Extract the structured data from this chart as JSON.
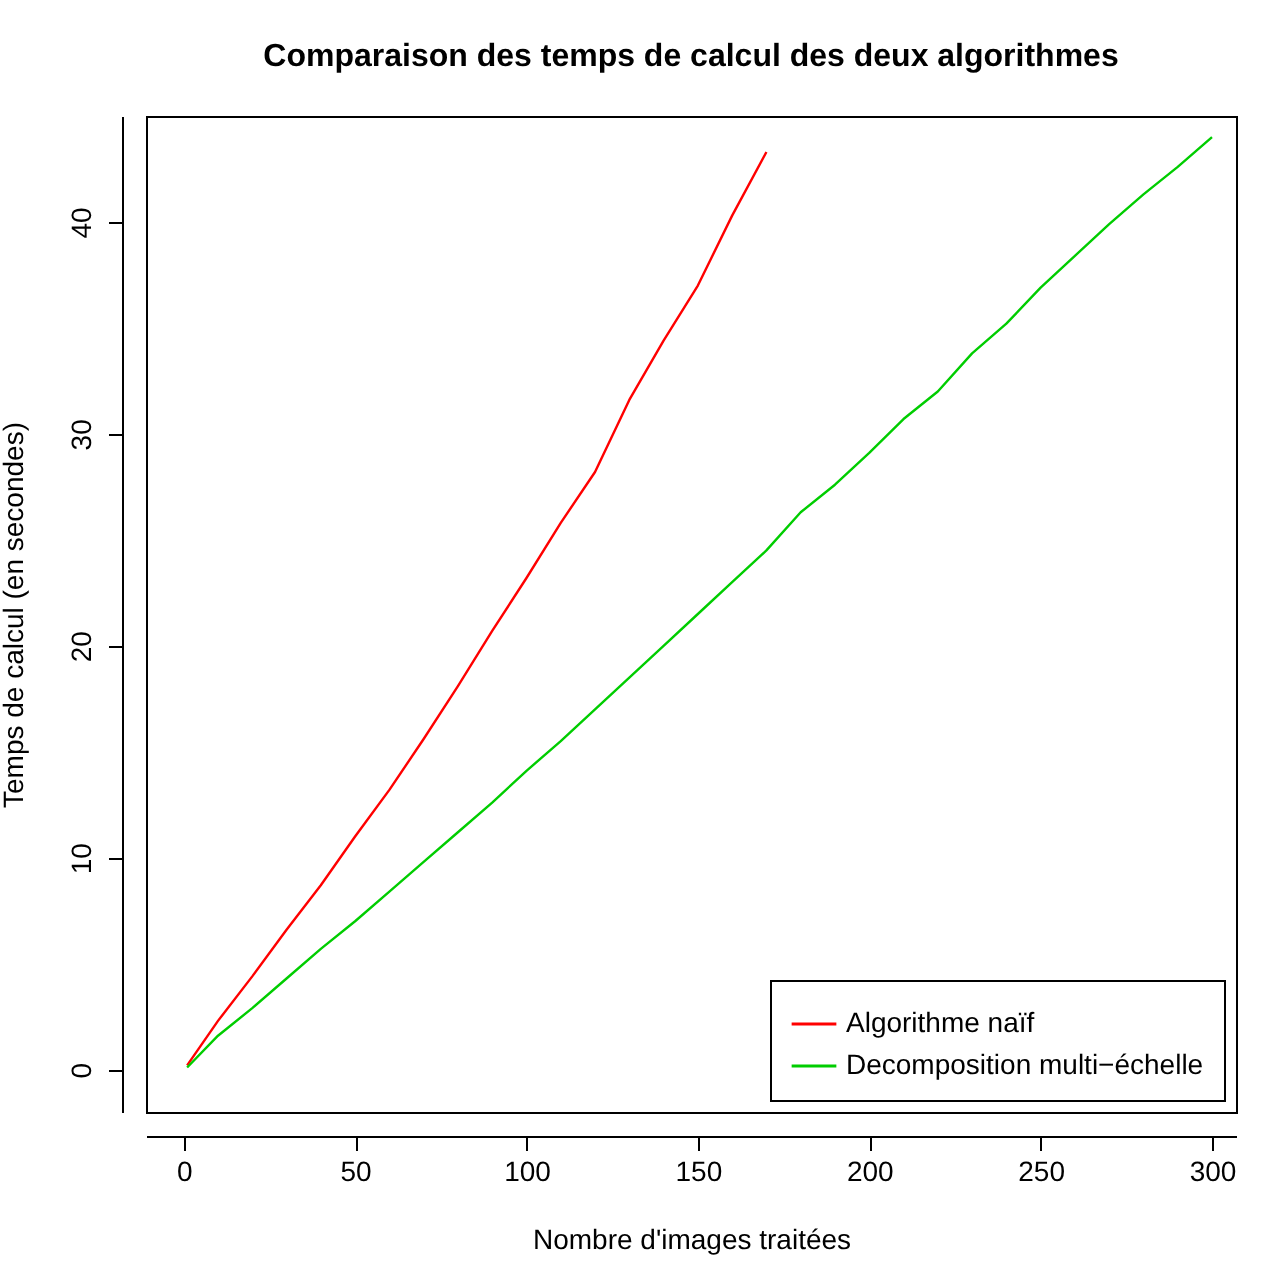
{
  "chart_data": {
    "type": "line",
    "title": "Comparaison des temps de calcul des deux algorithmes",
    "xlabel": "Nombre d'images traitées",
    "ylabel": "Temps de calcul (en secondes)",
    "xlim": [
      -11,
      307
    ],
    "ylim": [
      -2,
      45
    ],
    "xticks": [
      0,
      50,
      100,
      150,
      200,
      250,
      300
    ],
    "yticks": [
      0,
      10,
      20,
      30,
      40
    ],
    "legend": "bottom right",
    "line_style": "solid",
    "series": [
      {
        "name": "Algorithme naïf",
        "color": "#ff0000",
        "x": [
          1,
          10,
          20,
          30,
          40,
          50,
          60,
          70,
          80,
          90,
          100,
          110,
          120,
          130,
          140,
          150,
          160,
          170
        ],
        "values": [
          0.2,
          2.3,
          4.4,
          6.6,
          8.7,
          11.0,
          13.2,
          15.6,
          18.1,
          20.7,
          23.2,
          25.8,
          28.2,
          31.6,
          34.4,
          37.0,
          40.3,
          43.3
        ]
      },
      {
        "name": "Decomposition multi−échelle",
        "color": "#00cd00",
        "x": [
          1,
          10,
          20,
          30,
          40,
          50,
          60,
          70,
          80,
          90,
          100,
          110,
          120,
          130,
          140,
          150,
          160,
          170,
          180,
          190,
          200,
          210,
          220,
          230,
          240,
          250,
          260,
          270,
          280,
          290,
          300
        ],
        "values": [
          0.1,
          1.6,
          2.9,
          4.3,
          5.7,
          7.0,
          8.4,
          9.8,
          11.2,
          12.6,
          14.1,
          15.5,
          17.0,
          18.5,
          20.0,
          21.5,
          23.0,
          24.5,
          26.3,
          27.6,
          29.1,
          30.7,
          32.0,
          33.8,
          35.2,
          36.9,
          38.4,
          39.9,
          41.3,
          42.6,
          44.0
        ]
      }
    ]
  }
}
